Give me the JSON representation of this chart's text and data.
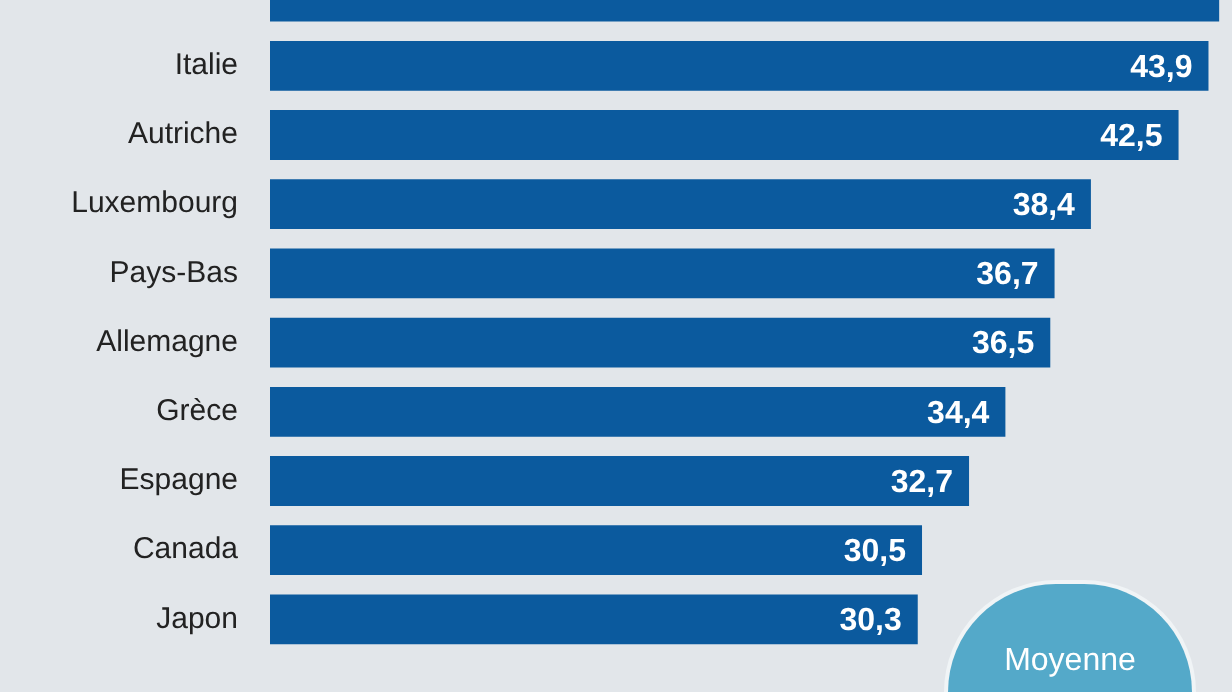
{
  "chart_data": {
    "type": "bar",
    "orientation": "horizontal",
    "categories": [
      null,
      "Italie",
      "Autriche",
      "Luxembourg",
      "Pays-Bas",
      "Allemagne",
      "Grèce",
      "Espagne",
      "Canada",
      "Japon"
    ],
    "values": [
      44.4,
      43.9,
      42.5,
      38.4,
      36.7,
      36.5,
      34.4,
      32.7,
      30.5,
      30.3
    ],
    "value_labels": [
      null,
      "43,9",
      "42,5",
      "38,4",
      "36,7",
      "36,5",
      "34,4",
      "32,7",
      "30,5",
      "30,3"
    ],
    "color": "#0b5a9e",
    "tick_labels": "y",
    "legend": false,
    "annotations": [
      "Moyenne"
    ]
  }
}
